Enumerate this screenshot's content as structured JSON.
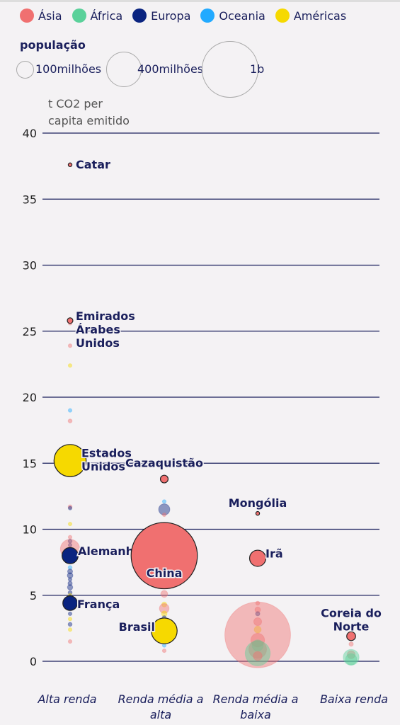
{
  "legend": {
    "regions": [
      {
        "name": "Ásia",
        "color": "#f07070"
      },
      {
        "name": "África",
        "color": "#5ad19a"
      },
      {
        "name": "Europa",
        "color": "#0a2480"
      },
      {
        "name": "Oceania",
        "color": "#22aaff"
      },
      {
        "name": "Américas",
        "color": "#f6d900"
      }
    ],
    "population_title": "população",
    "sizes": [
      {
        "label": "100milhões",
        "pop": 100
      },
      {
        "label": "400milhões",
        "pop": 400
      },
      {
        "label": "1b",
        "pop": 1000
      }
    ]
  },
  "chart_data": {
    "type": "scatter",
    "ylabel": "t CO2 per capita emitido",
    "ylim": [
      0,
      40
    ],
    "yticks": [
      0,
      5,
      10,
      15,
      20,
      25,
      30,
      35,
      40
    ],
    "categories": [
      "Alta renda",
      "Renda média a alta",
      "Renda média a baixa",
      "Baixa renda"
    ],
    "highlighted": [
      {
        "name": "Catar",
        "category": 0,
        "y": 37.6,
        "region": "Ásia",
        "pop": 3
      },
      {
        "name": "Emirados Árabes Unidos",
        "category": 0,
        "y": 25.8,
        "region": "Ásia",
        "pop": 10
      },
      {
        "name": "Estados Unidos",
        "category": 0,
        "y": 15.2,
        "region": "Américas",
        "pop": 330
      },
      {
        "name": "Alemanha",
        "category": 0,
        "y": 8.0,
        "region": "Europa",
        "pop": 83
      },
      {
        "name": "França",
        "category": 0,
        "y": 4.4,
        "region": "Europa",
        "pop": 67
      },
      {
        "name": "Cazaquistão",
        "category": 1,
        "y": 13.8,
        "region": "Ásia",
        "pop": 19
      },
      {
        "name": "China",
        "category": 1,
        "y": 8.0,
        "region": "Ásia",
        "pop": 1400
      },
      {
        "name": "Brasil",
        "category": 1,
        "y": 2.3,
        "region": "Américas",
        "pop": 212
      },
      {
        "name": "Mongólia",
        "category": 2,
        "y": 11.2,
        "region": "Ásia",
        "pop": 3
      },
      {
        "name": "Irã",
        "category": 2,
        "y": 7.8,
        "region": "Ásia",
        "pop": 84
      },
      {
        "name": "Coreia do Norte",
        "category": 3,
        "y": 1.9,
        "region": "Ásia",
        "pop": 25
      }
    ],
    "others": [
      {
        "category": 0,
        "y": 25.6,
        "region": "Ásia",
        "pop": 4
      },
      {
        "category": 0,
        "y": 23.9,
        "region": "Ásia",
        "pop": 4
      },
      {
        "category": 0,
        "y": 22.4,
        "region": "Américas",
        "pop": 1
      },
      {
        "category": 0,
        "y": 19.0,
        "region": "Oceania",
        "pop": 1
      },
      {
        "category": 0,
        "y": 18.2,
        "region": "Ásia",
        "pop": 5
      },
      {
        "category": 0,
        "y": 14.1,
        "region": "Américas",
        "pop": 2
      },
      {
        "category": 0,
        "y": 11.7,
        "region": "Ásia",
        "pop": 5
      },
      {
        "category": 0,
        "y": 11.6,
        "region": "Europa",
        "pop": 3
      },
      {
        "category": 0,
        "y": 10.4,
        "region": "Américas",
        "pop": 1
      },
      {
        "category": 0,
        "y": 9.4,
        "region": "Ásia",
        "pop": 3
      },
      {
        "category": 0,
        "y": 9.1,
        "region": "Europa",
        "pop": 5
      },
      {
        "category": 0,
        "y": 8.8,
        "region": "Europa",
        "pop": 3
      },
      {
        "category": 0,
        "y": 8.5,
        "region": "Ásia",
        "pop": 120
      },
      {
        "category": 0,
        "y": 8.2,
        "region": "Europa",
        "pop": 5
      },
      {
        "category": 0,
        "y": 7.6,
        "region": "Europa",
        "pop": 3
      },
      {
        "category": 0,
        "y": 7.1,
        "region": "Oceania",
        "pop": 5
      },
      {
        "category": 0,
        "y": 6.8,
        "region": "Europa",
        "pop": 8
      },
      {
        "category": 0,
        "y": 6.5,
        "region": "Europa",
        "pop": 10
      },
      {
        "category": 0,
        "y": 6.2,
        "region": "Europa",
        "pop": 4
      },
      {
        "category": 0,
        "y": 5.9,
        "region": "Europa",
        "pop": 6
      },
      {
        "category": 0,
        "y": 5.6,
        "region": "Europa",
        "pop": 9
      },
      {
        "category": 0,
        "y": 5.2,
        "region": "Europa",
        "pop": 5
      },
      {
        "category": 0,
        "y": 5.0,
        "region": "Américas",
        "pop": 3
      },
      {
        "category": 0,
        "y": 4.8,
        "region": "Europa",
        "pop": 10
      },
      {
        "category": 0,
        "y": 4.3,
        "region": "Europa",
        "pop": 8
      },
      {
        "category": 0,
        "y": 4.0,
        "region": "Europa",
        "pop": 5
      },
      {
        "category": 0,
        "y": 3.6,
        "region": "Europa",
        "pop": 3
      },
      {
        "category": 0,
        "y": 3.2,
        "region": "Américas",
        "pop": 3
      },
      {
        "category": 0,
        "y": 2.8,
        "region": "Europa",
        "pop": 5
      },
      {
        "category": 0,
        "y": 2.4,
        "region": "Américas",
        "pop": 2
      },
      {
        "category": 0,
        "y": 1.5,
        "region": "Ásia",
        "pop": 2
      },
      {
        "category": 1,
        "y": 12.1,
        "region": "Oceania",
        "pop": 1
      },
      {
        "category": 1,
        "y": 11.5,
        "region": "Europa",
        "pop": 40
      },
      {
        "category": 1,
        "y": 11.1,
        "region": "Ásia",
        "pop": 3
      },
      {
        "category": 1,
        "y": 6.6,
        "region": "Europa",
        "pop": 8
      },
      {
        "category": 1,
        "y": 6.3,
        "region": "Europa",
        "pop": 6
      },
      {
        "category": 1,
        "y": 5.8,
        "region": "Américas",
        "pop": 2
      },
      {
        "category": 1,
        "y": 5.1,
        "region": "Ásia",
        "pop": 15
      },
      {
        "category": 1,
        "y": 4.3,
        "region": "Américas",
        "pop": 8
      },
      {
        "category": 1,
        "y": 4.0,
        "region": "Ásia",
        "pop": 30
      },
      {
        "category": 1,
        "y": 3.6,
        "region": "Américas",
        "pop": 10
      },
      {
        "category": 1,
        "y": 3.3,
        "region": "Europa",
        "pop": 5
      },
      {
        "category": 1,
        "y": 2.7,
        "region": "Ásia",
        "pop": 60
      },
      {
        "category": 1,
        "y": 2.5,
        "region": "África",
        "pop": 15
      },
      {
        "category": 1,
        "y": 2.0,
        "region": "Américas",
        "pop": 8
      },
      {
        "category": 1,
        "y": 1.6,
        "region": "África",
        "pop": 5
      },
      {
        "category": 1,
        "y": 1.2,
        "region": "Oceania",
        "pop": 3
      },
      {
        "category": 1,
        "y": 0.8,
        "region": "Ásia",
        "pop": 3
      },
      {
        "category": 2,
        "y": 4.4,
        "region": "Ásia",
        "pop": 5
      },
      {
        "category": 2,
        "y": 3.9,
        "region": "Ásia",
        "pop": 10
      },
      {
        "category": 2,
        "y": 3.6,
        "region": "Europa",
        "pop": 6
      },
      {
        "category": 2,
        "y": 3.0,
        "region": "Ásia",
        "pop": 20
      },
      {
        "category": 2,
        "y": 2.4,
        "region": "Américas",
        "pop": 15
      },
      {
        "category": 2,
        "y": 2.0,
        "region": "Ásia",
        "pop": 1380
      },
      {
        "category": 2,
        "y": 1.6,
        "region": "Ásia",
        "pop": 60
      },
      {
        "category": 2,
        "y": 1.2,
        "region": "África",
        "pop": 40
      },
      {
        "category": 2,
        "y": 0.9,
        "region": "Ásia",
        "pop": 100
      },
      {
        "category": 2,
        "y": 0.6,
        "region": "África",
        "pop": 200
      },
      {
        "category": 2,
        "y": 0.4,
        "region": "Ásia",
        "pop": 25
      },
      {
        "category": 3,
        "y": 1.3,
        "region": "Ásia",
        "pop": 6
      },
      {
        "category": 3,
        "y": 0.5,
        "region": "Ásia",
        "pop": 20
      },
      {
        "category": 3,
        "y": 0.3,
        "region": "África",
        "pop": 80
      },
      {
        "category": 3,
        "y": 0.15,
        "region": "África",
        "pop": 40
      }
    ]
  }
}
